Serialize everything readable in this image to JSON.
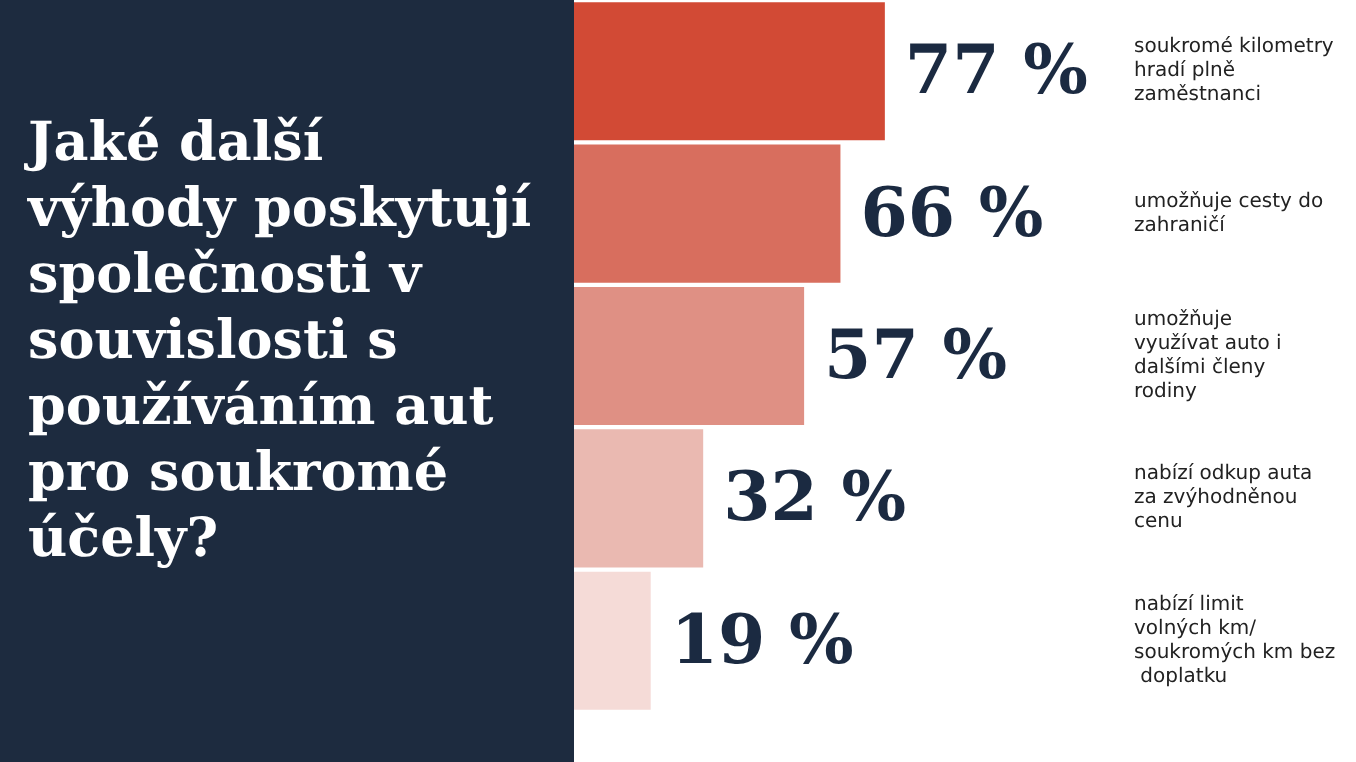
{
  "chart_data": {
    "type": "bar",
    "orientation": "horizontal",
    "title": "Jaké další výhody poskytují společnosti v souvislosti s používáním aut pro soukromé účely?",
    "categories": [
      "soukromé kilometry hradí plně zaměstnanci",
      "umožňuje cesty do zahraničí",
      "umožňuje využívat auto i dalšími členy rodiny",
      "nabízí odkup auta za zvýhodněnou cenu",
      "nabízí limit volných km/soukromých km bez doplatku"
    ],
    "values": [
      77,
      66,
      57,
      32,
      19
    ],
    "value_labels": [
      "77 %",
      "66 %",
      "57 %",
      "32 %",
      "19 %"
    ],
    "colors": [
      "#d24a35",
      "#d86e5e",
      "#df9084",
      "#eab9b1",
      "#f5dbd7"
    ],
    "tick_labels": false
  }
}
